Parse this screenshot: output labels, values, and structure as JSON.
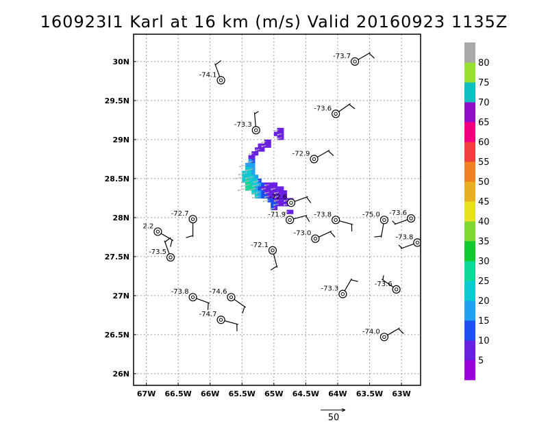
{
  "title": "160923I1 Karl at 16 km (m/s) Valid 20160923 1135Z",
  "map": {
    "lon_range": [
      -67.2,
      -62.7
    ],
    "lat_range": [
      25.85,
      30.35
    ],
    "lon_ticks": [
      {
        "v": -67,
        "label": "67W"
      },
      {
        "v": -66.5,
        "label": "66.5W"
      },
      {
        "v": -66,
        "label": "66W"
      },
      {
        "v": -65.5,
        "label": "65.5W"
      },
      {
        "v": -65,
        "label": "65W"
      },
      {
        "v": -64.5,
        "label": "64.5W"
      },
      {
        "v": -64,
        "label": "64W"
      },
      {
        "v": -63.5,
        "label": "63.5W"
      },
      {
        "v": -63,
        "label": "63W"
      }
    ],
    "lat_ticks": [
      {
        "v": 26,
        "label": "26N"
      },
      {
        "v": 26.5,
        "label": "26.5N"
      },
      {
        "v": 27,
        "label": "27N"
      },
      {
        "v": 27.5,
        "label": "27.5N"
      },
      {
        "v": 28,
        "label": "28N"
      },
      {
        "v": 28.5,
        "label": "28.5N"
      },
      {
        "v": 29,
        "label": "29N"
      },
      {
        "v": 29.5,
        "label": "29.5N"
      },
      {
        "v": 30,
        "label": "30N"
      }
    ],
    "grid": true,
    "grid_style": "dotted"
  },
  "observations": [
    {
      "lon": -65.83,
      "lat": 29.76,
      "label": "-74.1",
      "dir": 340,
      "speed": 10
    },
    {
      "lon": -63.73,
      "lat": 30.0,
      "label": "-73.7",
      "dir": 60,
      "speed": 10
    },
    {
      "lon": -64.03,
      "lat": 29.33,
      "label": "-73.6",
      "dir": 55,
      "speed": 10
    },
    {
      "lon": -65.28,
      "lat": 29.12,
      "label": "-73.3",
      "dir": 355,
      "speed": 5
    },
    {
      "lon": -64.37,
      "lat": 28.75,
      "label": "-72.9",
      "dir": 60,
      "speed": 10
    },
    {
      "lon": -64.73,
      "lat": 28.19,
      "label": "-72.6",
      "dir": 70,
      "speed": 10
    },
    {
      "lon": -66.27,
      "lat": 27.98,
      "label": "-72.7",
      "dir": 180,
      "speed": 10
    },
    {
      "lon": -64.75,
      "lat": 27.97,
      "label": "-71.9",
      "dir": 75,
      "speed": 10
    },
    {
      "lon": -64.03,
      "lat": 27.97,
      "label": "-73.8",
      "dir": 105,
      "speed": 10
    },
    {
      "lon": -63.27,
      "lat": 27.97,
      "label": "-75.0",
      "dir": 190,
      "speed": 10
    },
    {
      "lon": -62.85,
      "lat": 27.99,
      "label": "-73.6",
      "dir": 250,
      "speed": 5
    },
    {
      "lon": -66.82,
      "lat": 27.82,
      "label": "2.2",
      "dir": 120,
      "speed": 10
    },
    {
      "lon": -64.35,
      "lat": 27.73,
      "label": "-73.0",
      "dir": 65,
      "speed": 10
    },
    {
      "lon": -62.75,
      "lat": 27.68,
      "label": "-73.8",
      "dir": 250,
      "speed": 5
    },
    {
      "lon": -65.02,
      "lat": 27.58,
      "label": "-72.1",
      "dir": 165,
      "speed": 10
    },
    {
      "lon": -66.62,
      "lat": 27.49,
      "label": "-73.5",
      "dir": 340,
      "speed": 10
    },
    {
      "lon": -66.27,
      "lat": 26.98,
      "label": "-73.8",
      "dir": 110,
      "speed": 10
    },
    {
      "lon": -65.67,
      "lat": 26.98,
      "label": "-74.6",
      "dir": 125,
      "speed": 10
    },
    {
      "lon": -63.92,
      "lat": 27.02,
      "label": "-73.3",
      "dir": 30,
      "speed": 10
    },
    {
      "lon": -63.08,
      "lat": 27.08,
      "label": "-73.6",
      "dir": 305,
      "speed": 5
    },
    {
      "lon": -65.83,
      "lat": 26.69,
      "label": "-74.7",
      "dir": 105,
      "speed": 10
    },
    {
      "lon": -63.27,
      "lat": 26.47,
      "label": "-74.0",
      "dir": 60,
      "speed": 10
    }
  ],
  "wind_field": {
    "cell_size_deg": [
      0.05,
      0.05
    ],
    "rows": [
      {
        "lat": 29.1,
        "lon0": -64.95,
        "values": [
          5,
          5
        ]
      },
      {
        "lat": 29.05,
        "lon0": -65.0,
        "values": [
          5,
          5,
          5
        ]
      },
      {
        "lat": 29.0,
        "lon0": -64.95,
        "values": [
          5,
          5
        ]
      },
      {
        "lat": 28.95,
        "lon0": -65.15,
        "values": [
          5,
          5
        ]
      },
      {
        "lat": 28.9,
        "lon0": -65.25,
        "values": [
          5,
          5,
          5,
          5
        ]
      },
      {
        "lat": 28.85,
        "lon0": -65.3,
        "values": [
          5,
          5,
          5
        ]
      },
      {
        "lat": 28.8,
        "lon0": -65.35,
        "values": [
          5,
          5
        ]
      },
      {
        "lat": 28.75,
        "lon0": -65.4,
        "values": [
          5,
          5
        ]
      },
      {
        "lat": 28.7,
        "lon0": -65.4,
        "values": [
          18,
          10
        ]
      },
      {
        "lat": 28.65,
        "lon0": -65.45,
        "values": [
          18,
          18,
          15
        ]
      },
      {
        "lat": 28.6,
        "lon0": -65.45,
        "values": [
          20,
          20,
          18
        ]
      },
      {
        "lat": 28.55,
        "lon0": -65.5,
        "values": [
          20,
          22,
          20,
          18
        ]
      },
      {
        "lat": 28.5,
        "lon0": -65.5,
        "values": [
          22,
          24,
          22,
          20,
          18
        ]
      },
      {
        "lat": 28.45,
        "lon0": -65.5,
        "values": [
          24,
          25,
          24,
          22,
          20,
          12
        ]
      },
      {
        "lat": 28.4,
        "lon0": -65.45,
        "values": [
          25,
          25,
          24,
          22,
          15,
          10,
          5,
          5,
          5,
          5
        ]
      },
      {
        "lat": 28.35,
        "lon0": -65.45,
        "values": [
          25,
          26,
          25,
          18,
          12,
          8,
          5,
          5,
          5,
          5,
          5,
          5
        ]
      },
      {
        "lat": 28.3,
        "lon0": -65.35,
        "values": [
          24,
          22,
          15,
          10,
          8,
          5,
          5,
          5,
          5,
          5,
          5
        ]
      },
      {
        "lat": 28.25,
        "lon0": -65.3,
        "values": [
          20,
          18,
          12,
          10,
          5,
          5,
          5,
          5,
          5,
          5
        ]
      },
      {
        "lat": 28.2,
        "lon0": -65.1,
        "values": [
          12,
          10,
          8,
          5,
          5,
          5,
          5,
          5
        ]
      },
      {
        "lat": 28.15,
        "lon0": -65.05,
        "values": [
          14,
          10,
          8,
          5,
          5,
          5
        ]
      },
      {
        "lat": 28.1,
        "lon0": -65.05,
        "values": [
          12,
          8
        ]
      },
      {
        "lat": 28.05,
        "lon0": -64.8,
        "values": [
          8,
          8
        ]
      }
    ]
  },
  "colorbar": {
    "colors": [
      "#9b00d8",
      "#6a20e0",
      "#2050f0",
      "#20a0f0",
      "#10c8d0",
      "#10d898",
      "#10c830",
      "#80d830",
      "#e8e020",
      "#e8b020",
      "#f08020",
      "#f04040",
      "#f00080",
      "#9010c8",
      "#10c0c0",
      "#98e030",
      "#a8a8a8"
    ],
    "labels": [
      "5",
      "10",
      "15",
      "20",
      "25",
      "30",
      "35",
      "40",
      "45",
      "50",
      "55",
      "60",
      "65",
      "70",
      "75",
      "80"
    ]
  },
  "reference_vector": {
    "label": "50"
  }
}
